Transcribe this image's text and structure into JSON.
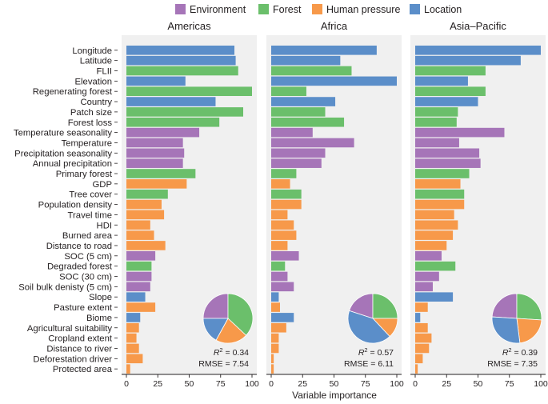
{
  "chart_data": {
    "type": "bar",
    "orientation": "horizontal",
    "xlabel": "Variable importance",
    "xlim": [
      0,
      100
    ],
    "xticks": [
      "0",
      "25",
      "50",
      "75",
      "100"
    ],
    "legend": [
      {
        "name": "Environment",
        "color": "#a675b8"
      },
      {
        "name": "Forest",
        "color": "#6bbf6b"
      },
      {
        "name": "Human pressure",
        "color": "#f7994a"
      },
      {
        "name": "Location",
        "color": "#5b8ec9"
      }
    ],
    "categories": [
      "Longitude",
      "Latitude",
      "FLII",
      "Elevation",
      "Regenerating forest",
      "Country",
      "Patch size",
      "Forest loss",
      "Temperature seasonality",
      "Temperature",
      "Precipitation seasonality",
      "Annual precipitation",
      "Primary forest",
      "GDP",
      "Tree cover",
      "Population density",
      "Travel time",
      "HDI",
      "Burned area",
      "Distance to road",
      "SOC (5 cm)",
      "Degraded forest",
      "SOC (30 cm)",
      "Soil bulk denisty (5 cm)",
      "Slope",
      "Pasture extent",
      "Biome",
      "Agricultural suitability",
      "Cropland extent",
      "Distance to river",
      "Deforestation driver",
      "Protected area"
    ],
    "category_groups": [
      "Location",
      "Location",
      "Forest",
      "Location",
      "Forest",
      "Location",
      "Forest",
      "Forest",
      "Environment",
      "Environment",
      "Environment",
      "Environment",
      "Forest",
      "Human pressure",
      "Forest",
      "Human pressure",
      "Human pressure",
      "Human pressure",
      "Human pressure",
      "Human pressure",
      "Environment",
      "Forest",
      "Environment",
      "Environment",
      "Location",
      "Human pressure",
      "Location",
      "Human pressure",
      "Human pressure",
      "Human pressure",
      "Human pressure",
      "Human pressure"
    ],
    "panels": [
      {
        "title": "Americas",
        "values": [
          86,
          87,
          89,
          47,
          100,
          71,
          93,
          74,
          58,
          45,
          46,
          45,
          55,
          48,
          33,
          28,
          30,
          19,
          22,
          31,
          23,
          20,
          20,
          19,
          15,
          23,
          11,
          10,
          8,
          10,
          13,
          3
        ],
        "pie": [
          25,
          37,
          21,
          17
        ],
        "r2": "0.34",
        "rmse": "RMSE = 7.54"
      },
      {
        "title": "Africa",
        "values": [
          84,
          55,
          64,
          100,
          28,
          51,
          43,
          58,
          33,
          66,
          43,
          40,
          20,
          15,
          24,
          24,
          13,
          18,
          20,
          13,
          22,
          11,
          13,
          18,
          6,
          7,
          18,
          12,
          6,
          6,
          2,
          2
        ],
        "pie": [
          20,
          25,
          13,
          42
        ],
        "r2": "0.57",
        "rmse": "RMSE = 6.11"
      },
      {
        "title": "Asia–Pacific",
        "values": [
          100,
          84,
          56,
          42,
          56,
          50,
          34,
          33,
          71,
          35,
          51,
          52,
          43,
          36,
          39,
          39,
          31,
          34,
          30,
          25,
          21,
          32,
          19,
          14,
          30,
          10,
          4,
          10,
          13,
          11,
          6,
          2
        ],
        "pie": [
          24,
          26,
          22,
          28
        ],
        "r2": "0.39",
        "rmse": "RMSE = 7.35"
      }
    ]
  }
}
